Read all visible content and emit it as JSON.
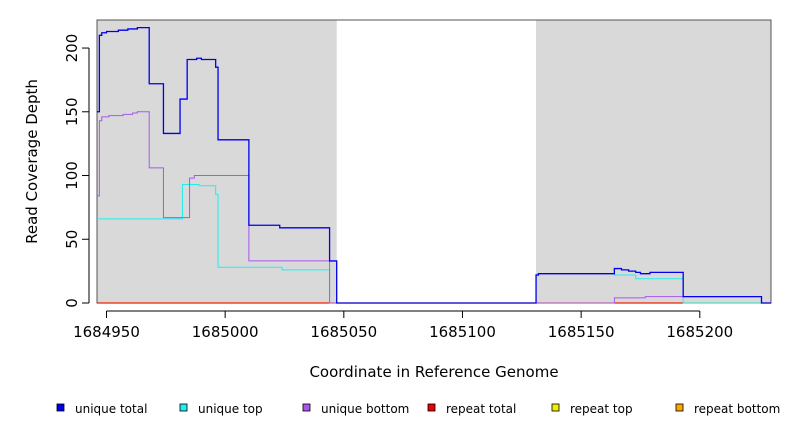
{
  "chart_data": {
    "type": "line",
    "title": "",
    "xlabel": "Coordinate in Reference Genome",
    "ylabel": "Read Coverage Depth",
    "xlim": [
      1684946,
      1685230
    ],
    "ylim": [
      0,
      222
    ],
    "x_ticks": [
      1684950,
      1685000,
      1685050,
      1685100,
      1685150,
      1685200
    ],
    "y_ticks": [
      0,
      50,
      100,
      150,
      200
    ],
    "shaded_regions": [
      [
        1684946,
        1685047
      ],
      [
        1685131,
        1685230
      ]
    ],
    "colors": {
      "shade": "#d9d9d9",
      "unique_total": "#0000ee",
      "unique_top": "#22eeee",
      "unique_bottom": "#aa55ee",
      "repeat_total": "#ee0000",
      "repeat_top": "#eeee00",
      "repeat_bottom": "#ffa500"
    },
    "legend_placement": "bottom",
    "series": [
      {
        "name": "unique total",
        "color": "#0000ee",
        "width": 1.3,
        "points": [
          [
            1684946,
            150
          ],
          [
            1684947,
            150
          ],
          [
            1684947,
            210
          ],
          [
            1684948,
            210
          ],
          [
            1684948,
            212
          ],
          [
            1684950,
            212
          ],
          [
            1684950,
            213
          ],
          [
            1684955,
            213
          ],
          [
            1684955,
            214
          ],
          [
            1684959,
            214
          ],
          [
            1684959,
            215
          ],
          [
            1684963,
            215
          ],
          [
            1684963,
            216
          ],
          [
            1684968,
            216
          ],
          [
            1684968,
            172
          ],
          [
            1684974,
            172
          ],
          [
            1684974,
            133
          ],
          [
            1684981,
            133
          ],
          [
            1684981,
            160
          ],
          [
            1684984,
            160
          ],
          [
            1684984,
            191
          ],
          [
            1684988,
            191
          ],
          [
            1684988,
            192
          ],
          [
            1684990,
            192
          ],
          [
            1684990,
            191
          ],
          [
            1684996,
            191
          ],
          [
            1684996,
            185
          ],
          [
            1684997,
            185
          ],
          [
            1684997,
            128
          ],
          [
            1685010,
            128
          ],
          [
            1685010,
            61
          ],
          [
            1685023,
            61
          ],
          [
            1685023,
            59
          ],
          [
            1685044,
            59
          ],
          [
            1685044,
            33
          ],
          [
            1685047,
            33
          ],
          [
            1685047,
            0
          ],
          [
            1685131,
            0
          ],
          [
            1685131,
            22
          ],
          [
            1685132,
            22
          ],
          [
            1685132,
            23
          ],
          [
            1685164,
            23
          ],
          [
            1685164,
            27
          ],
          [
            1685167,
            27
          ],
          [
            1685167,
            26
          ],
          [
            1685170,
            26
          ],
          [
            1685170,
            25
          ],
          [
            1685173,
            25
          ],
          [
            1685173,
            24
          ],
          [
            1685175,
            24
          ],
          [
            1685175,
            23
          ],
          [
            1685179,
            23
          ],
          [
            1685179,
            24
          ],
          [
            1685193,
            24
          ],
          [
            1685193,
            5
          ],
          [
            1685226,
            5
          ],
          [
            1685226,
            0
          ],
          [
            1685230,
            0
          ]
        ]
      },
      {
        "name": "unique top",
        "color": "#22eeee",
        "width": 1,
        "points": [
          [
            1684946,
            66
          ],
          [
            1684982,
            66
          ],
          [
            1684982,
            93
          ],
          [
            1684989,
            93
          ],
          [
            1684989,
            92
          ],
          [
            1684996,
            92
          ],
          [
            1684996,
            85
          ],
          [
            1684997,
            85
          ],
          [
            1684997,
            28
          ],
          [
            1685024,
            28
          ],
          [
            1685024,
            26
          ],
          [
            1685044,
            26
          ],
          [
            1685044,
            0
          ],
          [
            1685131,
            0
          ],
          [
            1685131,
            22
          ],
          [
            1685132,
            22
          ],
          [
            1685132,
            23
          ],
          [
            1685164,
            23
          ],
          [
            1685164,
            22
          ],
          [
            1685173,
            22
          ],
          [
            1685173,
            19
          ],
          [
            1685193,
            19
          ],
          [
            1685193,
            0
          ],
          [
            1685230,
            0
          ]
        ]
      },
      {
        "name": "unique bottom",
        "color": "#aa55ee",
        "width": 1,
        "points": [
          [
            1684946,
            84
          ],
          [
            1684947,
            84
          ],
          [
            1684947,
            143
          ],
          [
            1684948,
            143
          ],
          [
            1684948,
            146
          ],
          [
            1684951,
            146
          ],
          [
            1684951,
            147
          ],
          [
            1684957,
            147
          ],
          [
            1684957,
            148
          ],
          [
            1684961,
            148
          ],
          [
            1684961,
            149
          ],
          [
            1684963,
            149
          ],
          [
            1684963,
            150
          ],
          [
            1684968,
            150
          ],
          [
            1684968,
            106
          ],
          [
            1684974,
            106
          ],
          [
            1684974,
            67
          ],
          [
            1684985,
            67
          ],
          [
            1684985,
            98
          ],
          [
            1684987,
            98
          ],
          [
            1684987,
            100
          ],
          [
            1685010,
            100
          ],
          [
            1685010,
            33
          ],
          [
            1685044,
            33
          ],
          [
            1685044,
            0
          ],
          [
            1685164,
            0
          ],
          [
            1685164,
            4
          ],
          [
            1685177,
            4
          ],
          [
            1685177,
            5
          ],
          [
            1685193,
            5
          ],
          [
            1685193,
            5
          ],
          [
            1685226,
            5
          ],
          [
            1685226,
            0
          ],
          [
            1685230,
            0
          ]
        ]
      },
      {
        "name": "repeat total",
        "color": "#ee0000",
        "width": 1,
        "points": [
          [
            1684946,
            0
          ],
          [
            1685230,
            0
          ]
        ]
      },
      {
        "name": "repeat top",
        "color": "#eeee00",
        "width": 1,
        "points": [
          [
            1684946,
            0
          ],
          [
            1685230,
            0
          ]
        ]
      },
      {
        "name": "repeat bottom",
        "color": "#ffa500",
        "width": 1.2,
        "points": [
          [
            1684946,
            0
          ],
          [
            1685230,
            0
          ]
        ]
      }
    ]
  }
}
